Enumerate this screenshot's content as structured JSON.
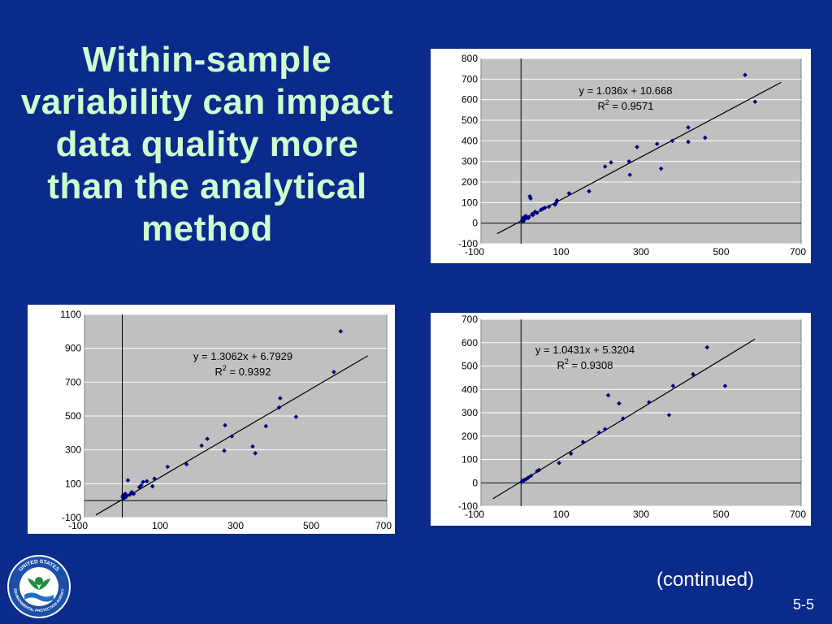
{
  "slide": {
    "title": "Within-sample variability can impact data quality more than the analytical method",
    "continued": "(continued)",
    "page_number": "5-5"
  },
  "logo": {
    "text_top": "UNITED STATES",
    "text_bottom": "ENVIRONMENTAL PROTECTION AGENCY",
    "colors": {
      "ring": "#1b4fa8",
      "plant": "#1f8f3a",
      "water": "#1e6fc8"
    }
  },
  "colors": {
    "background": "#0a2a8c",
    "title": "#cfffcf",
    "plot_bg": "#c0c0c0",
    "points": "#000080",
    "trend": "#000000",
    "grid": "#ffffff"
  },
  "chart_data": [
    {
      "type": "scatter",
      "title": "",
      "xlabel": "",
      "ylabel": "",
      "xlim": [
        -100,
        700
      ],
      "ylim": [
        -100,
        800
      ],
      "xticks": [
        -100,
        100,
        300,
        500,
        700
      ],
      "xticklabels": [
        "-100",
        "100",
        "300",
        "500",
        "700"
      ],
      "yticks": [
        -100,
        0,
        100,
        200,
        300,
        400,
        500,
        600,
        700,
        800
      ],
      "yticklabels": [
        "-100",
        "0",
        "100",
        "200",
        "300",
        "400",
        "500",
        "600",
        "700",
        "800"
      ],
      "grid": true,
      "trendline": {
        "slope": 1.036,
        "intercept": 10.668,
        "x_range": [
          -60,
          650
        ]
      },
      "equation": "y = 1.036x + 10.668",
      "r2_label": "R",
      "r2_value": " = 0.9571",
      "points": [
        [
          2,
          10
        ],
        [
          4,
          15
        ],
        [
          5,
          25
        ],
        [
          6,
          8
        ],
        [
          8,
          30
        ],
        [
          10,
          20
        ],
        [
          12,
          35
        ],
        [
          15,
          28
        ],
        [
          18,
          25
        ],
        [
          20,
          30
        ],
        [
          22,
          130
        ],
        [
          24,
          120
        ],
        [
          28,
          45
        ],
        [
          30,
          40
        ],
        [
          35,
          55
        ],
        [
          40,
          50
        ],
        [
          50,
          65
        ],
        [
          55,
          70
        ],
        [
          60,
          75
        ],
        [
          70,
          80
        ],
        [
          85,
          90
        ],
        [
          88,
          100
        ],
        [
          90,
          110
        ],
        [
          120,
          145
        ],
        [
          170,
          155
        ],
        [
          210,
          275
        ],
        [
          225,
          295
        ],
        [
          270,
          300
        ],
        [
          272,
          235
        ],
        [
          290,
          370
        ],
        [
          340,
          385
        ],
        [
          350,
          265
        ],
        [
          378,
          400
        ],
        [
          418,
          465
        ],
        [
          418,
          395
        ],
        [
          460,
          415
        ],
        [
          560,
          720
        ],
        [
          585,
          590
        ]
      ]
    },
    {
      "type": "scatter",
      "title": "",
      "xlabel": "",
      "ylabel": "",
      "xlim": [
        -100,
        700
      ],
      "ylim": [
        -100,
        1100
      ],
      "xticks": [
        -100,
        100,
        300,
        500,
        700
      ],
      "xticklabels": [
        "-100",
        "100",
        "300",
        "500",
        "700"
      ],
      "yticks": [
        -100,
        100,
        300,
        500,
        700,
        900,
        1100
      ],
      "yticklabels": [
        "-100",
        "100",
        "300",
        "500",
        "700",
        "900",
        "1100"
      ],
      "grid": true,
      "trendline": {
        "slope": 1.3062,
        "intercept": 6.7929,
        "x_range": [
          -70,
          650
        ]
      },
      "equation": "y = 1.3062x + 6.7929",
      "r2_label": "R",
      "r2_value": " = 0.9392",
      "points": [
        [
          1,
          20
        ],
        [
          2,
          30
        ],
        [
          3,
          25
        ],
        [
          4,
          35
        ],
        [
          5,
          15
        ],
        [
          6,
          28
        ],
        [
          8,
          40
        ],
        [
          10,
          22
        ],
        [
          12,
          30
        ],
        [
          15,
          120
        ],
        [
          20,
          35
        ],
        [
          25,
          50
        ],
        [
          30,
          40
        ],
        [
          45,
          80
        ],
        [
          50,
          90
        ],
        [
          55,
          110
        ],
        [
          65,
          115
        ],
        [
          80,
          85
        ],
        [
          85,
          130
        ],
        [
          120,
          200
        ],
        [
          170,
          215
        ],
        [
          210,
          325
        ],
        [
          225,
          365
        ],
        [
          270,
          295
        ],
        [
          272,
          445
        ],
        [
          290,
          380
        ],
        [
          345,
          320
        ],
        [
          352,
          280
        ],
        [
          380,
          440
        ],
        [
          415,
          550
        ],
        [
          418,
          605
        ],
        [
          460,
          495
        ],
        [
          560,
          760
        ],
        [
          578,
          1000
        ]
      ]
    },
    {
      "type": "scatter",
      "title": "",
      "xlabel": "",
      "ylabel": "",
      "xlim": [
        -100,
        700
      ],
      "ylim": [
        -100,
        700
      ],
      "xticks": [
        -100,
        100,
        300,
        500,
        700
      ],
      "xticklabels": [
        "-100",
        "100",
        "300",
        "500",
        "700"
      ],
      "yticks": [
        -100,
        0,
        100,
        200,
        300,
        400,
        500,
        600,
        700
      ],
      "yticklabels": [
        "-100",
        "0",
        "100",
        "200",
        "300",
        "400",
        "500",
        "600",
        "700"
      ],
      "grid": true,
      "trendline": {
        "slope": 1.0431,
        "intercept": 5.3204,
        "x_range": [
          -70,
          585
        ]
      },
      "equation": "y = 1.0431x + 5.3204",
      "r2_label": "R",
      "r2_value": " = 0.9308",
      "points": [
        [
          2,
          5
        ],
        [
          5,
          10
        ],
        [
          8,
          12
        ],
        [
          12,
          15
        ],
        [
          18,
          22
        ],
        [
          25,
          30
        ],
        [
          40,
          50
        ],
        [
          45,
          55
        ],
        [
          95,
          85
        ],
        [
          125,
          125
        ],
        [
          155,
          175
        ],
        [
          195,
          215
        ],
        [
          210,
          230
        ],
        [
          218,
          375
        ],
        [
          245,
          340
        ],
        [
          255,
          275
        ],
        [
          320,
          345
        ],
        [
          370,
          290
        ],
        [
          380,
          415
        ],
        [
          430,
          465
        ],
        [
          465,
          580
        ],
        [
          510,
          415
        ]
      ]
    }
  ]
}
